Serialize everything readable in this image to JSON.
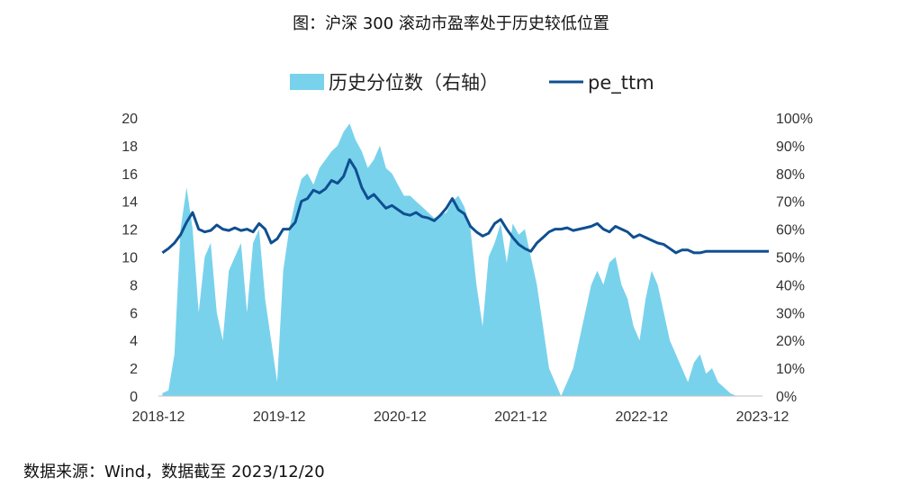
{
  "title": "图：沪深 300 滚动市盈率处于历史较低位置",
  "source": "数据来源：Wind，数据截至 2023/12/20",
  "colors": {
    "area": "#79d2ec",
    "line": "#0f4f91"
  },
  "chart_data": {
    "type": "area+line",
    "title": "图：沪深 300 滚动市盈率处于历史较低位置",
    "legend": {
      "placement": "top-center",
      "entries": [
        "历史分位数（右轴）",
        "pe_ttm"
      ]
    },
    "x_ticks": [
      "2018-12",
      "2019-12",
      "2020-12",
      "2021-12",
      "2022-12",
      "2023-12"
    ],
    "x_range": [
      "2018-12",
      "2023-12"
    ],
    "y_left": {
      "min": 0,
      "max": 20,
      "ticks": [
        "0",
        "2",
        "4",
        "6",
        "8",
        "10",
        "12",
        "14",
        "16",
        "18",
        "20"
      ]
    },
    "y_right": {
      "min": 0,
      "max": 100,
      "ticks": [
        "0%",
        "10%",
        "20%",
        "30%",
        "40%",
        "50%",
        "60%",
        "70%",
        "80%",
        "90%",
        "100%"
      ]
    },
    "series": [
      {
        "name": "历史分位数（右轴）",
        "axis": "right",
        "type": "area",
        "x": [
          2018.95,
          2019.0,
          2019.05,
          2019.1,
          2019.15,
          2019.2,
          2019.25,
          2019.3,
          2019.35,
          2019.4,
          2019.45,
          2019.5,
          2019.55,
          2019.6,
          2019.65,
          2019.7,
          2019.75,
          2019.8,
          2019.85,
          2019.9,
          2019.95,
          2020.0,
          2020.05,
          2020.1,
          2020.15,
          2020.2,
          2020.25,
          2020.3,
          2020.35,
          2020.4,
          2020.45,
          2020.5,
          2020.55,
          2020.6,
          2020.65,
          2020.7,
          2020.75,
          2020.8,
          2020.85,
          2020.9,
          2020.95,
          2021.0,
          2021.05,
          2021.1,
          2021.15,
          2021.2,
          2021.25,
          2021.3,
          2021.35,
          2021.4,
          2021.45,
          2021.5,
          2021.55,
          2021.6,
          2021.65,
          2021.7,
          2021.75,
          2021.8,
          2021.85,
          2021.9,
          2021.95,
          2022.0,
          2022.05,
          2022.1,
          2022.15,
          2022.2,
          2022.25,
          2022.3,
          2022.35,
          2022.4,
          2022.45,
          2022.5,
          2022.55,
          2022.6,
          2022.65,
          2022.7,
          2022.75,
          2022.8,
          2022.85,
          2022.9,
          2022.95,
          2023.0,
          2023.05,
          2023.1,
          2023.15,
          2023.2,
          2023.25,
          2023.3,
          2023.35,
          2023.4,
          2023.45,
          2023.5,
          2023.55,
          2023.6,
          2023.65,
          2023.7,
          2023.75,
          2023.8,
          2023.85,
          2023.9,
          2023.95,
          2023.97
        ],
        "values": [
          1,
          2,
          15,
          60,
          75,
          60,
          30,
          50,
          55,
          30,
          20,
          45,
          50,
          55,
          30,
          55,
          60,
          35,
          20,
          5,
          45,
          60,
          70,
          78,
          80,
          76,
          82,
          85,
          88,
          90,
          95,
          98,
          92,
          88,
          82,
          85,
          90,
          82,
          80,
          76,
          72,
          72,
          70,
          68,
          66,
          64,
          65,
          66,
          70,
          72,
          68,
          60,
          40,
          25,
          50,
          55,
          62,
          48,
          62,
          58,
          60,
          50,
          40,
          25,
          10,
          5,
          0,
          5,
          10,
          20,
          30,
          40,
          45,
          40,
          48,
          50,
          40,
          35,
          25,
          20,
          35,
          45,
          40,
          30,
          20,
          15,
          10,
          5,
          12,
          15,
          8,
          10,
          5,
          3,
          1,
          0,
          0,
          0,
          0,
          0,
          0,
          0
        ]
      },
      {
        "name": "pe_ttm",
        "axis": "left",
        "type": "line",
        "x": [
          2018.95,
          2019.0,
          2019.05,
          2019.1,
          2019.15,
          2019.2,
          2019.25,
          2019.3,
          2019.35,
          2019.4,
          2019.45,
          2019.5,
          2019.55,
          2019.6,
          2019.65,
          2019.7,
          2019.75,
          2019.8,
          2019.85,
          2019.9,
          2019.95,
          2020.0,
          2020.05,
          2020.1,
          2020.15,
          2020.2,
          2020.25,
          2020.3,
          2020.35,
          2020.4,
          2020.45,
          2020.5,
          2020.55,
          2020.6,
          2020.65,
          2020.7,
          2020.75,
          2020.8,
          2020.85,
          2020.9,
          2020.95,
          2021.0,
          2021.05,
          2021.1,
          2021.15,
          2021.2,
          2021.25,
          2021.3,
          2021.35,
          2021.4,
          2021.45,
          2021.5,
          2021.55,
          2021.6,
          2021.65,
          2021.7,
          2021.75,
          2021.8,
          2021.85,
          2021.9,
          2021.95,
          2022.0,
          2022.05,
          2022.1,
          2022.15,
          2022.2,
          2022.25,
          2022.3,
          2022.35,
          2022.4,
          2022.45,
          2022.5,
          2022.55,
          2022.6,
          2022.65,
          2022.7,
          2022.75,
          2022.8,
          2022.85,
          2022.9,
          2022.95,
          2023.0,
          2023.05,
          2023.1,
          2023.15,
          2023.2,
          2023.25,
          2023.3,
          2023.35,
          2023.4,
          2023.45,
          2023.5,
          2023.55,
          2023.6,
          2023.65,
          2023.7,
          2023.75,
          2023.8,
          2023.85,
          2023.9,
          2023.95,
          2023.97
        ],
        "values": [
          10.3,
          10.6,
          11.0,
          11.6,
          12.5,
          13.2,
          12.0,
          11.8,
          11.9,
          12.3,
          12.0,
          11.9,
          12.1,
          11.9,
          12.0,
          11.8,
          12.4,
          12.0,
          11.0,
          11.3,
          12.0,
          12.0,
          12.5,
          14.0,
          14.2,
          14.8,
          14.6,
          14.9,
          15.5,
          15.3,
          15.8,
          17.0,
          16.3,
          15.0,
          14.2,
          14.5,
          14.0,
          13.5,
          13.7,
          13.4,
          13.1,
          13.0,
          13.2,
          12.9,
          12.8,
          12.6,
          13.0,
          13.5,
          14.2,
          13.4,
          13.1,
          12.2,
          11.8,
          11.5,
          11.7,
          12.4,
          12.7,
          12.0,
          11.4,
          10.9,
          10.6,
          10.4,
          11.0,
          11.4,
          11.8,
          12.0,
          12.0,
          12.1,
          11.9,
          12.0,
          12.1,
          12.2,
          12.4,
          12.0,
          11.8,
          12.2,
          12.0,
          11.8,
          11.4,
          11.6,
          11.4,
          11.2,
          11.0,
          10.9,
          10.6,
          10.3,
          10.5,
          10.5,
          10.3,
          10.3,
          10.4,
          10.4,
          10.4,
          10.4,
          10.4,
          10.4,
          10.4,
          10.4,
          10.4,
          10.4,
          10.4,
          10.4
        ]
      }
    ]
  }
}
